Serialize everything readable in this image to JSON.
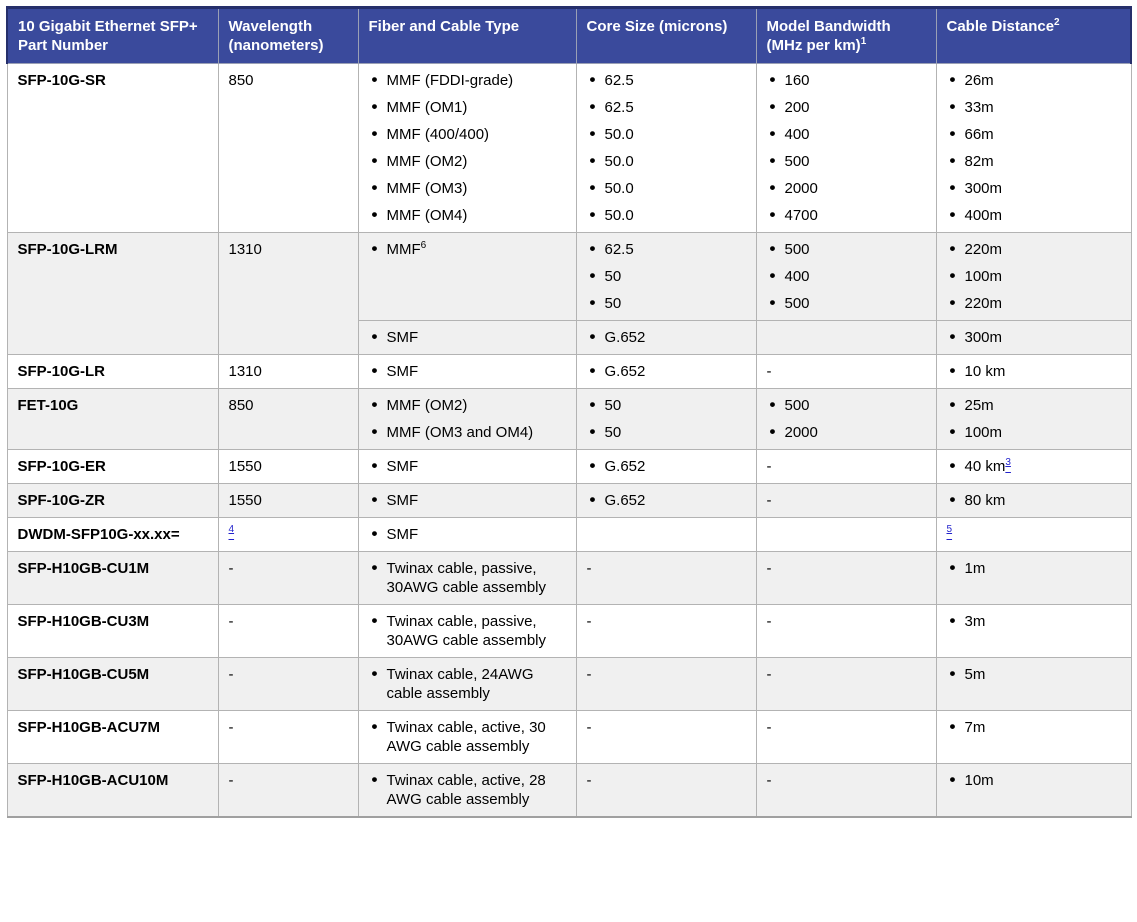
{
  "colors": {
    "header_bg": "#3A4A9C",
    "header_top_border": "#262F6B",
    "header_text": "#FFFFFF",
    "row_alt_bg": "#F0F0F0",
    "grid_border": "#B3B3B3",
    "link": "#2323CC",
    "body_text": "#000000"
  },
  "table": {
    "headers": [
      {
        "label": "10 Gigabit Ethernet SFP+ Part Number"
      },
      {
        "label": "Wavelength (nanometers)"
      },
      {
        "label": "Fiber and Cable Type"
      },
      {
        "label": "Core Size (microns)"
      },
      {
        "label": "Model Bandwidth (MHz per km)",
        "sup": {
          "t": "1",
          "link": false
        }
      },
      {
        "label": "Cable Distance",
        "sup": {
          "t": "2",
          "link": false
        }
      }
    ],
    "rows": [
      {
        "part": "SFP-10G-SR",
        "shaded": false,
        "wavelength": {
          "text": "850"
        },
        "fiber": {
          "items": [
            {
              "t": "MMF (FDDI-grade)"
            },
            {
              "t": "MMF (OM1)"
            },
            {
              "t": "MMF (400/400)"
            },
            {
              "t": "MMF (OM2)"
            },
            {
              "t": "MMF (OM3)"
            },
            {
              "t": "MMF (OM4)"
            }
          ]
        },
        "core": {
          "items": [
            {
              "t": "62.5"
            },
            {
              "t": "62.5"
            },
            {
              "t": "50.0"
            },
            {
              "t": "50.0"
            },
            {
              "t": "50.0"
            },
            {
              "t": "50.0"
            }
          ]
        },
        "bandwidth": {
          "items": [
            {
              "t": "160"
            },
            {
              "t": "200"
            },
            {
              "t": "400"
            },
            {
              "t": "500"
            },
            {
              "t": "2000"
            },
            {
              "t": "4700"
            }
          ]
        },
        "distance": {
          "items": [
            {
              "t": "26m"
            },
            {
              "t": "33m"
            },
            {
              "t": "66m"
            },
            {
              "t": "82m"
            },
            {
              "t": "300m"
            },
            {
              "t": "400m"
            }
          ]
        }
      },
      {
        "part": "SFP-10G-LRM",
        "shaded": true,
        "wavelength": {
          "text": "1310"
        },
        "fiber": {
          "items": [
            {
              "t": "MMF",
              "sup": {
                "t": "6",
                "link": false
              }
            }
          ]
        },
        "core": {
          "items": [
            {
              "t": "62.5"
            },
            {
              "t": "50"
            },
            {
              "t": "50"
            }
          ]
        },
        "bandwidth": {
          "items": [
            {
              "t": "500"
            },
            {
              "t": "400"
            },
            {
              "t": "500"
            }
          ]
        },
        "distance": {
          "items": [
            {
              "t": "220m"
            },
            {
              "t": "100m"
            },
            {
              "t": "220m"
            }
          ]
        },
        "subrow": {
          "fiber": {
            "items": [
              {
                "t": "SMF"
              }
            ]
          },
          "core": {
            "items": [
              {
                "t": "G.652"
              }
            ]
          },
          "bandwidth": {
            "text": ""
          },
          "distance": {
            "items": [
              {
                "t": "300m"
              }
            ]
          }
        }
      },
      {
        "part": "SFP-10G-LR",
        "shaded": false,
        "wavelength": {
          "text": "1310"
        },
        "fiber": {
          "items": [
            {
              "t": "SMF"
            }
          ]
        },
        "core": {
          "items": [
            {
              "t": "G.652"
            }
          ]
        },
        "bandwidth": {
          "text": "-"
        },
        "distance": {
          "items": [
            {
              "t": "10 km"
            }
          ]
        }
      },
      {
        "part": "FET-10G",
        "shaded": true,
        "wavelength": {
          "text": "850"
        },
        "fiber": {
          "items": [
            {
              "t": "MMF (OM2)"
            },
            {
              "t": "MMF (OM3 and OM4)"
            }
          ]
        },
        "core": {
          "items": [
            {
              "t": "50"
            },
            {
              "t": "50"
            }
          ]
        },
        "bandwidth": {
          "items": [
            {
              "t": "500"
            },
            {
              "t": "2000"
            }
          ]
        },
        "distance": {
          "items": [
            {
              "t": "25m"
            },
            {
              "t": "100m"
            }
          ]
        }
      },
      {
        "part": "SFP-10G-ER",
        "shaded": false,
        "wavelength": {
          "text": "1550"
        },
        "fiber": {
          "items": [
            {
              "t": "SMF"
            }
          ]
        },
        "core": {
          "items": [
            {
              "t": "G.652"
            }
          ]
        },
        "bandwidth": {
          "text": "-"
        },
        "distance": {
          "items": [
            {
              "t": "40 km",
              "sup": {
                "t": "3",
                "link": true
              }
            }
          ]
        }
      },
      {
        "part": "SPF-10G-ZR",
        "shaded": true,
        "wavelength": {
          "text": "1550"
        },
        "fiber": {
          "items": [
            {
              "t": "SMF"
            }
          ]
        },
        "core": {
          "items": [
            {
              "t": "G.652"
            }
          ]
        },
        "bandwidth": {
          "text": "-"
        },
        "distance": {
          "items": [
            {
              "t": "80 km"
            }
          ]
        }
      },
      {
        "part": "DWDM-SFP10G-xx.xx=",
        "shaded": false,
        "wavelength": {
          "text": "",
          "sup": {
            "t": "4",
            "link": true
          }
        },
        "fiber": {
          "items": [
            {
              "t": "SMF"
            }
          ]
        },
        "core": {
          "text": ""
        },
        "bandwidth": {
          "text": ""
        },
        "distance": {
          "text": "",
          "sup": {
            "t": "5",
            "link": true
          }
        }
      },
      {
        "part": "SFP-H10GB-CU1M",
        "shaded": true,
        "wavelength": {
          "text": "-"
        },
        "fiber": {
          "items": [
            {
              "t": "Twinax cable, passive, 30AWG cable assembly"
            }
          ]
        },
        "core": {
          "text": "-"
        },
        "bandwidth": {
          "text": "-"
        },
        "distance": {
          "items": [
            {
              "t": "1m"
            }
          ]
        }
      },
      {
        "part": "SFP-H10GB-CU3M",
        "shaded": false,
        "wavelength": {
          "text": "-"
        },
        "fiber": {
          "items": [
            {
              "t": "Twinax cable, passive, 30AWG cable assembly"
            }
          ]
        },
        "core": {
          "text": "-"
        },
        "bandwidth": {
          "text": "-"
        },
        "distance": {
          "items": [
            {
              "t": "3m"
            }
          ]
        }
      },
      {
        "part": "SFP-H10GB-CU5M",
        "shaded": true,
        "wavelength": {
          "text": "-"
        },
        "fiber": {
          "items": [
            {
              "t": "Twinax cable, 24AWG cable assembly"
            }
          ]
        },
        "core": {
          "text": "-"
        },
        "bandwidth": {
          "text": "-"
        },
        "distance": {
          "items": [
            {
              "t": "5m"
            }
          ]
        }
      },
      {
        "part": "SFP-H10GB-ACU7M",
        "shaded": false,
        "wavelength": {
          "text": "-"
        },
        "fiber": {
          "items": [
            {
              "t": "Twinax cable, active, 30 AWG cable assembly"
            }
          ]
        },
        "core": {
          "text": "-"
        },
        "bandwidth": {
          "text": "-"
        },
        "distance": {
          "items": [
            {
              "t": "7m"
            }
          ]
        }
      },
      {
        "part": "SFP-H10GB-ACU10M",
        "shaded": true,
        "wavelength": {
          "text": "-"
        },
        "fiber": {
          "items": [
            {
              "t": "Twinax cable, active, 28 AWG cable assembly"
            }
          ]
        },
        "core": {
          "text": "-"
        },
        "bandwidth": {
          "text": "-"
        },
        "distance": {
          "items": [
            {
              "t": "10m"
            }
          ]
        }
      }
    ]
  }
}
